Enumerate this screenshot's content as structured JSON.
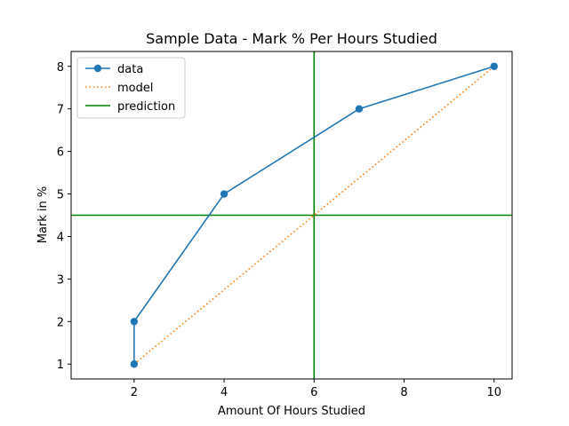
{
  "chart_data": {
    "type": "line",
    "title": "Sample Data - Mark % Per Hours Studied",
    "xlabel": "Amount Of Hours Studied",
    "ylabel": "Mark in %",
    "xlim": [
      0.6,
      10.4
    ],
    "ylim": [
      0.65,
      8.35
    ],
    "xticks": [
      2,
      4,
      6,
      8,
      10
    ],
    "yticks": [
      1,
      2,
      3,
      4,
      5,
      6,
      7,
      8
    ],
    "grid": false,
    "legend_position": "upper-left",
    "series": [
      {
        "name": "data",
        "style": "solid-line-with-circle-markers",
        "color": "#1f77b4",
        "x": [
          2,
          2,
          4,
          7,
          10
        ],
        "y": [
          1,
          2,
          5,
          7,
          8
        ]
      },
      {
        "name": "model",
        "style": "dotted-line",
        "color": "#ff7f0e",
        "x": [
          2,
          10
        ],
        "y": [
          1,
          8
        ]
      },
      {
        "name": "prediction",
        "style": "solid-reference-lines",
        "color": "#008000",
        "vline_x": 6,
        "hline_y": 4.5
      }
    ]
  }
}
